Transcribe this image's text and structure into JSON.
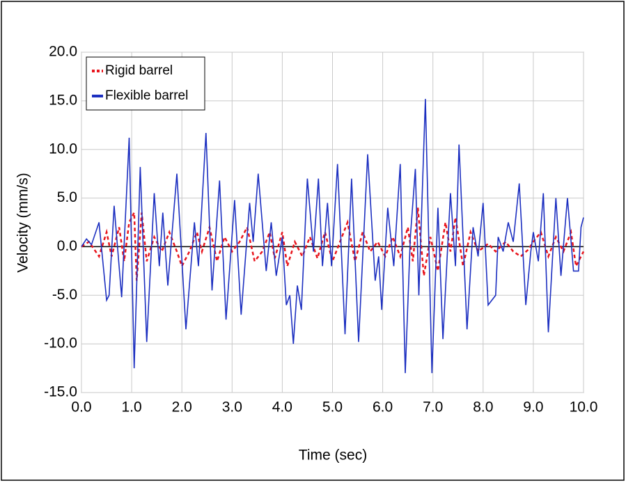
{
  "chart_data": {
    "type": "line",
    "xlabel": "Time (sec)",
    "ylabel": "Velocity (mm/s)",
    "xlim": [
      0,
      10
    ],
    "ylim": [
      -15,
      20
    ],
    "xticks": [
      {
        "value": 0,
        "label": "0.0"
      },
      {
        "value": 1,
        "label": "1.0"
      },
      {
        "value": 2,
        "label": "2.0"
      },
      {
        "value": 3,
        "label": "3.0"
      },
      {
        "value": 4,
        "label": "4.0"
      },
      {
        "value": 5,
        "label": "5.0"
      },
      {
        "value": 6,
        "label": "6.0"
      },
      {
        "value": 7,
        "label": "7.0"
      },
      {
        "value": 8,
        "label": "8.0"
      },
      {
        "value": 9,
        "label": "9.0"
      },
      {
        "value": 10,
        "label": "10.0"
      }
    ],
    "yticks": [
      {
        "value": -15,
        "label": "-15.0"
      },
      {
        "value": -10,
        "label": "-10.0"
      },
      {
        "value": -5,
        "label": "-5.0"
      },
      {
        "value": 0,
        "label": "0.0"
      },
      {
        "value": 5,
        "label": "5.0"
      },
      {
        "value": 10,
        "label": "10.0"
      },
      {
        "value": 15,
        "label": "15.0"
      },
      {
        "value": 20,
        "label": "20.0"
      }
    ],
    "grid": true,
    "legend": "upper left",
    "series": [
      {
        "name": "Rigid barrel",
        "color": "#e8141c",
        "dashed": true,
        "x": [
          0,
          0.15,
          0.35,
          0.5,
          0.6,
          0.75,
          0.85,
          0.95,
          1.05,
          1.1,
          1.2,
          1.3,
          1.45,
          1.6,
          1.75,
          1.9,
          2.0,
          2.15,
          2.3,
          2.4,
          2.55,
          2.7,
          2.85,
          3.0,
          3.15,
          3.3,
          3.45,
          3.6,
          3.75,
          3.85,
          4.0,
          4.1,
          4.25,
          4.4,
          4.55,
          4.7,
          4.85,
          5.0,
          5.15,
          5.3,
          5.45,
          5.6,
          5.75,
          5.9,
          6.05,
          6.2,
          6.35,
          6.5,
          6.6,
          6.7,
          6.82,
          6.95,
          7.1,
          7.25,
          7.35,
          7.45,
          7.6,
          7.75,
          7.9,
          8.1,
          8.25,
          8.45,
          8.6,
          8.75,
          8.9,
          9.0,
          9.15,
          9.3,
          9.45,
          9.6,
          9.75,
          9.85,
          10
        ],
        "values": [
          0,
          0.5,
          -1,
          1.5,
          -1,
          2,
          -1.5,
          2.5,
          3.5,
          -3.5,
          3.5,
          -1.5,
          1,
          -0.5,
          1.5,
          -0.5,
          -2,
          -0.5,
          1.5,
          -0.5,
          2,
          -1.5,
          1,
          -0.5,
          0.5,
          2,
          -1.5,
          -0.5,
          1.5,
          -1.2,
          1.5,
          -2,
          0.5,
          -1,
          1,
          -1.2,
          1.5,
          -1.5,
          0.5,
          2.5,
          -1.5,
          1.5,
          -0.5,
          0.5,
          -1,
          1,
          -1,
          2,
          -1.5,
          4,
          -3,
          1,
          -2.5,
          2.5,
          -0.5,
          3,
          -2,
          1.5,
          -0.5,
          0.3,
          -0.5,
          0.5,
          -0.5,
          -1,
          -0.3,
          0.5,
          1.5,
          -1,
          1,
          -0.5,
          1.5,
          -2,
          -0.5
        ]
      },
      {
        "name": "Flexible barrel",
        "color": "#1c2fc0",
        "dashed": false,
        "x": [
          0,
          0.1,
          0.2,
          0.35,
          0.5,
          0.55,
          0.65,
          0.8,
          0.95,
          1.05,
          1.17,
          1.3,
          1.45,
          1.55,
          1.62,
          1.72,
          1.9,
          2.08,
          2.25,
          2.33,
          2.48,
          2.6,
          2.75,
          2.88,
          3.05,
          3.18,
          3.35,
          3.42,
          3.52,
          3.68,
          3.78,
          3.88,
          4.0,
          4.08,
          4.15,
          4.22,
          4.3,
          4.38,
          4.5,
          4.62,
          4.72,
          4.8,
          4.9,
          4.98,
          5.1,
          5.25,
          5.38,
          5.52,
          5.7,
          5.85,
          5.92,
          5.98,
          6.1,
          6.22,
          6.35,
          6.45,
          6.55,
          6.65,
          6.72,
          6.85,
          6.98,
          7.1,
          7.2,
          7.35,
          7.45,
          7.52,
          7.68,
          7.8,
          7.9,
          8.0,
          8.1,
          8.25,
          8.3,
          8.4,
          8.5,
          8.6,
          8.72,
          8.85,
          8.95,
          9.0,
          9.1,
          9.2,
          9.3,
          9.45,
          9.55,
          9.68,
          9.8,
          9.9,
          9.95,
          10
        ],
        "values": [
          0,
          0.8,
          0.2,
          2.5,
          -5.5,
          -5,
          4.2,
          -5.2,
          11.2,
          -12.5,
          8.2,
          -9.8,
          5.5,
          -2,
          3.5,
          -4,
          7.5,
          -8.5,
          2.5,
          -2,
          11.7,
          -4.5,
          6.8,
          -7.5,
          4.8,
          -7,
          4.5,
          0.5,
          7.5,
          -2.5,
          2.5,
          -3,
          1,
          -6,
          -5,
          -10,
          -4,
          -6.5,
          7,
          -0.5,
          7,
          -2,
          4.5,
          -2,
          8.5,
          -9,
          7,
          -9.8,
          9.5,
          -3.5,
          -1,
          -6.5,
          4,
          -2,
          8.5,
          -13,
          1,
          8,
          -5,
          15.2,
          -13,
          4,
          -9.5,
          5.5,
          -2,
          10.5,
          -8.5,
          2,
          -1,
          4.5,
          -6,
          -5,
          1,
          -0.5,
          2.5,
          0.5,
          6.5,
          -6,
          -0.5,
          1.5,
          -1.5,
          5.5,
          -8.8,
          5,
          -3,
          5,
          -2.5,
          -2.5,
          2,
          3
        ]
      }
    ]
  }
}
